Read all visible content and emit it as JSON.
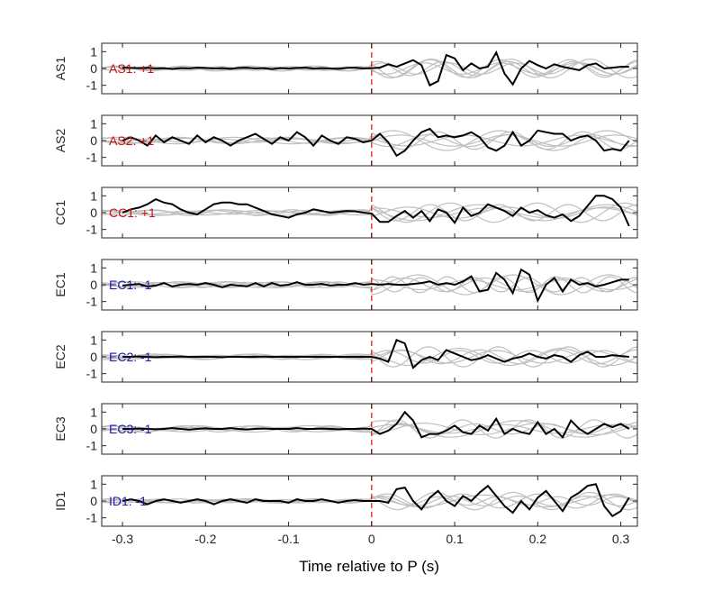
{
  "xlabel": "Time relative to P (s)",
  "chart_data": {
    "type": "line",
    "xlabel": "Time relative to P (s)",
    "xlim": [
      -0.325,
      0.32
    ],
    "ylim": [
      -1.5,
      1.5
    ],
    "xticks": [
      -0.3,
      -0.2,
      -0.1,
      0,
      0.1,
      0.2,
      0.3
    ],
    "xtick_labels": [
      "-0.3",
      "-0.2",
      "-0.1",
      "0",
      "0.1",
      "0.2",
      "0.3"
    ],
    "yticks": [
      -1,
      0,
      1
    ],
    "ytick_labels": [
      "-1",
      "0",
      "1"
    ],
    "p_arrival_marker": {
      "x": 0,
      "color": "#e53020"
    },
    "colors": {
      "trace": "#000000",
      "background_traces": "#bfbfbf",
      "positive_label": "#cc1111",
      "negative_label": "#1a1aaa"
    },
    "panels": [
      {
        "ylabel": "AS1",
        "annotation": "AS1: +1",
        "polarity": "+1",
        "x": [
          -0.3,
          -0.29,
          -0.28,
          -0.27,
          -0.26,
          -0.25,
          -0.24,
          -0.23,
          -0.22,
          -0.21,
          -0.2,
          -0.19,
          -0.18,
          -0.17,
          -0.16,
          -0.15,
          -0.14,
          -0.13,
          -0.12,
          -0.11,
          -0.1,
          -0.09,
          -0.08,
          -0.07,
          -0.06,
          -0.05,
          -0.04,
          -0.03,
          -0.02,
          -0.01,
          0,
          0.01,
          0.02,
          0.03,
          0.04,
          0.05,
          0.06,
          0.07,
          0.08,
          0.09,
          0.1,
          0.11,
          0.12,
          0.13,
          0.14,
          0.15,
          0.16,
          0.17,
          0.18,
          0.19,
          0.2,
          0.21,
          0.22,
          0.23,
          0.24,
          0.25,
          0.26,
          0.27,
          0.28,
          0.29,
          0.3,
          0.31
        ],
        "y": [
          0.05,
          0.03,
          0.02,
          0.04,
          0.0,
          0.02,
          -0.03,
          0.02,
          0.0,
          0.05,
          0.03,
          0.0,
          0.02,
          -0.02,
          0.03,
          0.05,
          0.0,
          0.02,
          -0.03,
          0.02,
          0.0,
          0.03,
          0.05,
          0.0,
          0.02,
          0.0,
          -0.02,
          0.03,
          0.05,
          0.0,
          0.02,
          0.05,
          0.25,
          0.1,
          0.3,
          0.5,
          0.2,
          -1.0,
          -0.75,
          0.8,
          0.6,
          -0.1,
          0.3,
          0.0,
          0.1,
          0.95,
          -0.3,
          -0.95,
          0.0,
          0.45,
          0.2,
          0.0,
          0.25,
          0.1,
          0.0,
          -0.1,
          0.2,
          0.3,
          0.0,
          0.05,
          0.1,
          0.1
        ]
      },
      {
        "ylabel": "AS2",
        "annotation": "AS2: +1",
        "polarity": "+1",
        "x": [
          -0.3,
          -0.29,
          -0.28,
          -0.27,
          -0.26,
          -0.25,
          -0.24,
          -0.23,
          -0.22,
          -0.21,
          -0.2,
          -0.19,
          -0.18,
          -0.17,
          -0.16,
          -0.15,
          -0.14,
          -0.13,
          -0.12,
          -0.11,
          -0.1,
          -0.09,
          -0.08,
          -0.07,
          -0.06,
          -0.05,
          -0.04,
          -0.03,
          -0.02,
          -0.01,
          0,
          0.01,
          0.02,
          0.03,
          0.04,
          0.05,
          0.06,
          0.07,
          0.08,
          0.09,
          0.1,
          0.11,
          0.12,
          0.13,
          0.14,
          0.15,
          0.16,
          0.17,
          0.18,
          0.19,
          0.2,
          0.21,
          0.22,
          0.23,
          0.24,
          0.25,
          0.26,
          0.27,
          0.28,
          0.29,
          0.3,
          0.31
        ],
        "y": [
          0.0,
          0.2,
          0.0,
          -0.3,
          0.3,
          -0.1,
          0.2,
          0.0,
          -0.2,
          0.3,
          -0.1,
          0.2,
          0.0,
          -0.3,
          0.0,
          0.2,
          0.4,
          0.1,
          -0.2,
          0.2,
          0.0,
          0.5,
          0.2,
          -0.3,
          0.3,
          0.0,
          -0.2,
          0.2,
          0.1,
          -0.1,
          0.0,
          0.4,
          -0.1,
          -0.9,
          -0.6,
          0.0,
          0.5,
          0.7,
          0.2,
          0.3,
          0.2,
          0.3,
          0.5,
          0.2,
          -0.4,
          -0.6,
          -0.3,
          0.5,
          -0.3,
          0.0,
          0.6,
          0.5,
          0.4,
          0.4,
          0.0,
          0.2,
          0.3,
          0.0,
          -0.6,
          -0.5,
          -0.6,
          0.0
        ]
      },
      {
        "ylabel": "CC1",
        "annotation": "CC1: +1",
        "polarity": "+1",
        "x": [
          -0.3,
          -0.29,
          -0.28,
          -0.27,
          -0.26,
          -0.25,
          -0.24,
          -0.23,
          -0.22,
          -0.21,
          -0.2,
          -0.19,
          -0.18,
          -0.17,
          -0.16,
          -0.15,
          -0.14,
          -0.13,
          -0.12,
          -0.11,
          -0.1,
          -0.09,
          -0.08,
          -0.07,
          -0.06,
          -0.05,
          -0.04,
          -0.03,
          -0.02,
          -0.01,
          0,
          0.01,
          0.02,
          0.03,
          0.04,
          0.05,
          0.06,
          0.07,
          0.08,
          0.09,
          0.1,
          0.11,
          0.12,
          0.13,
          0.14,
          0.15,
          0.16,
          0.17,
          0.18,
          0.19,
          0.2,
          0.21,
          0.22,
          0.23,
          0.24,
          0.25,
          0.26,
          0.27,
          0.28,
          0.29,
          0.3,
          0.31
        ],
        "y": [
          0.0,
          0.2,
          0.3,
          0.5,
          0.8,
          0.6,
          0.5,
          0.2,
          0.0,
          -0.1,
          0.2,
          0.5,
          0.6,
          0.6,
          0.5,
          0.5,
          0.3,
          0.1,
          -0.1,
          -0.2,
          -0.3,
          -0.1,
          0.0,
          0.2,
          0.1,
          0.0,
          0.05,
          0.1,
          0.08,
          0.0,
          -0.05,
          -0.55,
          -0.55,
          -0.2,
          0.1,
          -0.3,
          0.1,
          -0.5,
          0.2,
          0.0,
          -0.6,
          0.3,
          -0.2,
          0.0,
          0.5,
          0.3,
          0.1,
          -0.2,
          0.3,
          0.0,
          0.15,
          -0.15,
          -0.3,
          -0.1,
          -0.5,
          -0.2,
          0.4,
          1.0,
          1.0,
          0.8,
          0.3,
          -0.8
        ]
      },
      {
        "ylabel": "EC1",
        "annotation": "EC1: -1",
        "polarity": "-1",
        "x": [
          -0.3,
          -0.29,
          -0.28,
          -0.27,
          -0.26,
          -0.25,
          -0.24,
          -0.23,
          -0.22,
          -0.21,
          -0.2,
          -0.19,
          -0.18,
          -0.17,
          -0.16,
          -0.15,
          -0.14,
          -0.13,
          -0.12,
          -0.11,
          -0.1,
          -0.09,
          -0.08,
          -0.07,
          -0.06,
          -0.05,
          -0.04,
          -0.03,
          -0.02,
          -0.01,
          0,
          0.01,
          0.02,
          0.03,
          0.04,
          0.05,
          0.06,
          0.07,
          0.08,
          0.09,
          0.1,
          0.11,
          0.12,
          0.13,
          0.14,
          0.15,
          0.16,
          0.17,
          0.18,
          0.19,
          0.2,
          0.21,
          0.22,
          0.23,
          0.24,
          0.25,
          0.26,
          0.27,
          0.28,
          0.29,
          0.3,
          0.31
        ],
        "y": [
          -0.05,
          0.0,
          0.05,
          -0.1,
          -0.05,
          0.1,
          -0.1,
          0.0,
          0.05,
          0.0,
          0.1,
          0.0,
          -0.15,
          0.0,
          -0.05,
          -0.1,
          0.1,
          -0.1,
          0.1,
          -0.05,
          0.0,
          0.15,
          0.0,
          0.0,
          0.05,
          -0.05,
          0.0,
          0.0,
          0.1,
          0.0,
          0.05,
          0.0,
          0.05,
          0.0,
          0.0,
          0.05,
          0.1,
          0.2,
          0.0,
          0.1,
          0.0,
          0.2,
          0.5,
          -0.4,
          -0.3,
          0.7,
          0.3,
          -0.5,
          0.9,
          0.6,
          -0.95,
          0.0,
          0.4,
          -0.4,
          0.3,
          0.0,
          0.1,
          -0.1,
          0.0,
          0.15,
          0.3,
          0.3
        ]
      },
      {
        "ylabel": "EC2",
        "annotation": "EC2: -1",
        "polarity": "-1",
        "x": [
          -0.3,
          -0.29,
          -0.28,
          -0.27,
          -0.26,
          -0.25,
          -0.24,
          -0.23,
          -0.22,
          -0.21,
          -0.2,
          -0.19,
          -0.18,
          -0.17,
          -0.16,
          -0.15,
          -0.14,
          -0.13,
          -0.12,
          -0.11,
          -0.1,
          -0.09,
          -0.08,
          -0.07,
          -0.06,
          -0.05,
          -0.04,
          -0.03,
          -0.02,
          -0.01,
          0,
          0.01,
          0.02,
          0.03,
          0.04,
          0.05,
          0.06,
          0.07,
          0.08,
          0.09,
          0.1,
          0.11,
          0.12,
          0.13,
          0.14,
          0.15,
          0.16,
          0.17,
          0.18,
          0.19,
          0.2,
          0.21,
          0.22,
          0.23,
          0.24,
          0.25,
          0.26,
          0.27,
          0.28,
          0.29,
          0.3,
          0.31
        ],
        "y": [
          0.0,
          0.0,
          0.02,
          0.0,
          -0.02,
          0.0,
          0.0,
          0.02,
          0.0,
          0.0,
          0.0,
          0.0,
          -0.02,
          0.0,
          0.0,
          0.0,
          0.0,
          0.02,
          0.0,
          0.0,
          0.0,
          0.0,
          0.0,
          0.0,
          0.0,
          0.0,
          0.0,
          0.0,
          0.0,
          0.0,
          0.0,
          -0.1,
          -0.3,
          1.0,
          0.8,
          -0.65,
          -0.2,
          0.0,
          -0.2,
          0.4,
          0.2,
          0.0,
          -0.2,
          -0.1,
          0.1,
          -0.1,
          -0.3,
          -0.1,
          0.0,
          0.2,
          0.0,
          -0.1,
          0.1,
          0.0,
          -0.3,
          0.1,
          0.3,
          0.0,
          0.0,
          0.1,
          0.05,
          0.0
        ]
      },
      {
        "ylabel": "EC3",
        "annotation": "EC3: -1",
        "polarity": "-1",
        "x": [
          -0.3,
          -0.29,
          -0.28,
          -0.27,
          -0.26,
          -0.25,
          -0.24,
          -0.23,
          -0.22,
          -0.21,
          -0.2,
          -0.19,
          -0.18,
          -0.17,
          -0.16,
          -0.15,
          -0.14,
          -0.13,
          -0.12,
          -0.11,
          -0.1,
          -0.09,
          -0.08,
          -0.07,
          -0.06,
          -0.05,
          -0.04,
          -0.03,
          -0.02,
          -0.01,
          0,
          0.01,
          0.02,
          0.03,
          0.04,
          0.05,
          0.06,
          0.07,
          0.08,
          0.09,
          0.1,
          0.11,
          0.12,
          0.13,
          0.14,
          0.15,
          0.16,
          0.17,
          0.18,
          0.19,
          0.2,
          0.21,
          0.22,
          0.23,
          0.24,
          0.25,
          0.26,
          0.27,
          0.28,
          0.29,
          0.3,
          0.31
        ],
        "y": [
          0.0,
          0.0,
          0.02,
          0.0,
          -0.02,
          0.0,
          0.05,
          0.0,
          -0.05,
          0.0,
          0.03,
          0.0,
          0.0,
          0.05,
          0.0,
          -0.03,
          0.0,
          0.02,
          0.0,
          0.0,
          0.0,
          0.05,
          0.0,
          0.0,
          0.02,
          0.0,
          -0.02,
          0.0,
          0.0,
          0.02,
          0.0,
          -0.3,
          -0.1,
          0.3,
          1.0,
          0.5,
          -0.5,
          -0.3,
          -0.3,
          -0.1,
          0.2,
          -0.2,
          -0.3,
          0.2,
          -0.1,
          0.6,
          -0.3,
          0.0,
          -0.2,
          -0.3,
          0.4,
          -0.3,
          0.0,
          -0.5,
          0.5,
          0.0,
          -0.3,
          0.0,
          0.3,
          0.1,
          0.3,
          0.0
        ]
      },
      {
        "ylabel": "ID1",
        "annotation": "ID1: -1",
        "polarity": "-1",
        "x": [
          -0.3,
          -0.29,
          -0.28,
          -0.27,
          -0.26,
          -0.25,
          -0.24,
          -0.23,
          -0.22,
          -0.21,
          -0.2,
          -0.19,
          -0.18,
          -0.17,
          -0.16,
          -0.15,
          -0.14,
          -0.13,
          -0.12,
          -0.11,
          -0.1,
          -0.09,
          -0.08,
          -0.07,
          -0.06,
          -0.05,
          -0.04,
          -0.03,
          -0.02,
          -0.01,
          0,
          0.01,
          0.02,
          0.03,
          0.04,
          0.05,
          0.06,
          0.07,
          0.08,
          0.09,
          0.1,
          0.11,
          0.12,
          0.13,
          0.14,
          0.15,
          0.16,
          0.17,
          0.18,
          0.19,
          0.2,
          0.21,
          0.22,
          0.23,
          0.24,
          0.25,
          0.26,
          0.27,
          0.28,
          0.29,
          0.3,
          0.31
        ],
        "y": [
          0.0,
          0.1,
          0.0,
          -0.2,
          0.0,
          0.1,
          0.0,
          -0.1,
          0.0,
          0.1,
          0.0,
          -0.2,
          0.0,
          0.1,
          0.0,
          -0.1,
          0.1,
          0.0,
          0.0,
          0.0,
          -0.1,
          0.1,
          0.0,
          0.0,
          0.1,
          0.0,
          -0.1,
          0.0,
          0.05,
          0.0,
          0.0,
          0.0,
          -0.1,
          0.7,
          0.8,
          0.0,
          -0.5,
          0.2,
          0.6,
          0.0,
          -0.3,
          0.3,
          0.0,
          0.5,
          0.9,
          0.3,
          -0.3,
          -0.7,
          0.0,
          -0.5,
          0.2,
          0.6,
          0.0,
          -0.6,
          0.2,
          0.5,
          0.9,
          1.0,
          -0.3,
          -0.9,
          -0.6,
          0.2
        ]
      }
    ]
  }
}
